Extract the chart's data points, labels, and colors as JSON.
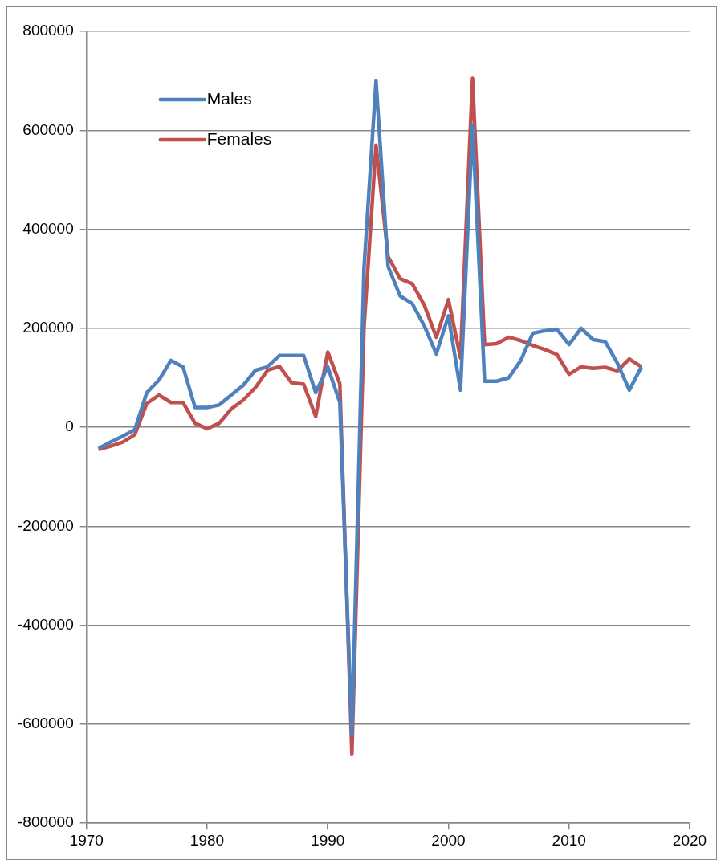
{
  "chart_data": {
    "type": "line",
    "x": [
      1971,
      1972,
      1973,
      1974,
      1975,
      1976,
      1977,
      1978,
      1979,
      1980,
      1981,
      1982,
      1983,
      1984,
      1985,
      1986,
      1987,
      1988,
      1989,
      1990,
      1991,
      1992,
      1993,
      1994,
      1995,
      1996,
      1997,
      1998,
      1999,
      2000,
      2001,
      2002,
      2003,
      2004,
      2005,
      2006,
      2007,
      2008,
      2009,
      2010,
      2011,
      2012,
      2013,
      2014,
      2015,
      2016
    ],
    "series": [
      {
        "name": "Males",
        "color": "#4f81bd",
        "values": [
          -43000,
          -30000,
          -18000,
          -5000,
          70000,
          95000,
          135000,
          122000,
          40000,
          40000,
          45000,
          65000,
          85000,
          115000,
          122000,
          145000,
          145000,
          145000,
          70000,
          122000,
          50000,
          -620000,
          320000,
          700000,
          325000,
          265000,
          250000,
          205000,
          148000,
          225000,
          75000,
          610000,
          93000,
          93000,
          100000,
          135000,
          190000,
          195000,
          198000,
          167000,
          200000,
          177000,
          173000,
          130000,
          75000,
          122000
        ]
      },
      {
        "name": "Females",
        "color": "#c0504d",
        "values": [
          -45000,
          -38000,
          -30000,
          -15000,
          48000,
          65000,
          50000,
          50000,
          8000,
          -3000,
          8000,
          37000,
          55000,
          80000,
          115000,
          123000,
          90000,
          87000,
          22000,
          152000,
          88000,
          -660000,
          200000,
          570000,
          345000,
          300000,
          290000,
          247000,
          182000,
          258000,
          140000,
          705000,
          167000,
          169000,
          182000,
          175000,
          165000,
          157000,
          147000,
          107000,
          122000,
          119000,
          121000,
          114000,
          138000,
          122000
        ]
      }
    ],
    "xlim": [
      1970,
      2020
    ],
    "xticks": [
      1970,
      1980,
      1990,
      2000,
      2010,
      2020
    ],
    "ylim": [
      -800000,
      800000
    ],
    "yticks": [
      -800000,
      -600000,
      -400000,
      -200000,
      0,
      200000,
      400000,
      600000,
      800000
    ],
    "grid": "y",
    "legend": "top left",
    "marker": "none",
    "line_style": "solid"
  }
}
